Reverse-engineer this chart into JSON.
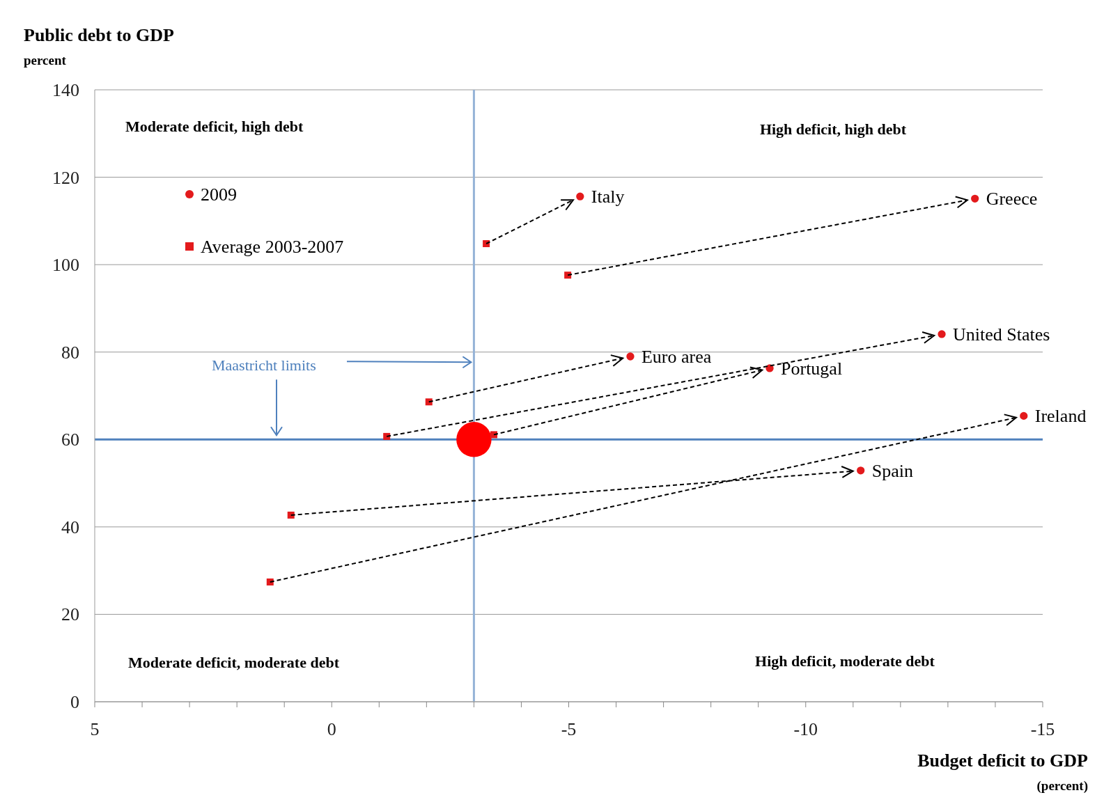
{
  "chart_data": {
    "type": "scatter",
    "xlabel": "Budget deficit to GDP\n(percent)",
    "ylabel": "Public debt to GDP\npercent",
    "xlim": [
      5,
      -15
    ],
    "ylim": [
      0,
      140
    ],
    "xticks": [
      5,
      {
        "value": 4,
        "label": null
      },
      {
        "value": 3,
        "label": null
      },
      {
        "value": 2,
        "label": null
      },
      {
        "value": 1,
        "label": null
      },
      0,
      {
        "value": -1,
        "label": null
      },
      {
        "value": -2,
        "label": null
      },
      {
        "value": -3,
        "label": null
      },
      {
        "value": -4,
        "label": null
      },
      -5,
      {
        "value": -6,
        "label": null
      },
      {
        "value": -7,
        "label": null
      },
      {
        "value": -8,
        "label": null
      },
      {
        "value": -9,
        "label": null
      },
      -10,
      {
        "value": -11,
        "label": null
      },
      {
        "value": -12,
        "label": null
      },
      {
        "value": -13,
        "label": null
      },
      {
        "value": -14,
        "label": null
      },
      -15
    ],
    "yticks": [
      0,
      20,
      40,
      60,
      80,
      100,
      120,
      140
    ],
    "grid": "y",
    "legend": "top left",
    "series": [
      {
        "name": "2009",
        "color": "#e31a1c",
        "marker": "circle",
        "x": [
          -5.24,
          -13.57,
          -12.87,
          -6.3,
          -9.24,
          -14.6,
          -11.16
        ],
        "values": [
          115.6,
          115.1,
          84.1,
          79.0,
          76.3,
          65.4,
          52.9
        ]
      },
      {
        "name": "Average 2003-2007",
        "color": "#e31a1c",
        "marker": "square",
        "x": [
          -3.26,
          -4.98,
          -1.16,
          -2.05,
          -3.42,
          1.3,
          0.86
        ],
        "values": [
          104.8,
          97.6,
          60.7,
          68.6,
          61.1,
          27.4,
          42.7
        ]
      },
      {
        "type": "bubble",
        "color": "#ff0000",
        "x": [
          -3
        ],
        "values": [
          60
        ],
        "sizes": [
          1
        ]
      }
    ],
    "ref_lines": [
      {
        "axis": "x",
        "value": -3,
        "color": "#95b3d7"
      },
      {
        "axis": "y",
        "value": 60,
        "label": "Maastricht limits",
        "color": "#4f81bd"
      }
    ],
    "annotations": [
      {
        "text": "Italy",
        "x": -5.24,
        "y": 115.6
      },
      {
        "text": "Greece",
        "x": -13.57,
        "y": 115.1
      },
      {
        "text": "United States",
        "x": -12.87,
        "y": 84.1
      },
      {
        "text": "Euro area",
        "x": -6.3,
        "y": 79.0
      },
      {
        "text": "Portugal",
        "x": -9.24,
        "y": 76.3
      },
      {
        "text": "Ireland",
        "x": -14.6,
        "y": 65.4
      },
      {
        "text": "Spain",
        "x": -11.16,
        "y": 52.9
      },
      "Moderate deficit, high debt",
      "High deficit, high debt",
      "Moderate deficit, moderate debt",
      "High deficit, moderate debt"
    ]
  }
}
